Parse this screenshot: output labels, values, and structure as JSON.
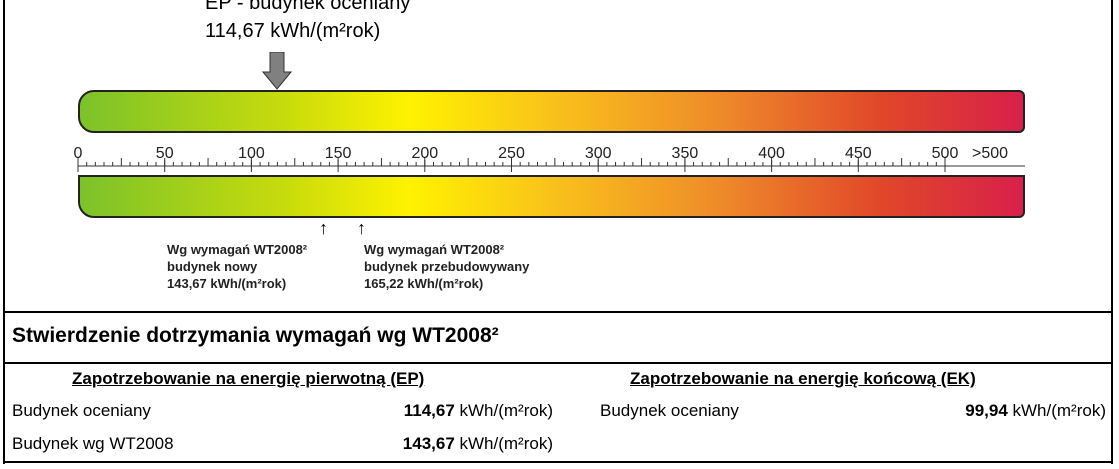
{
  "header": {
    "title": "EP - budynek oceniany",
    "value": "114,67 kWh/(m²rok)"
  },
  "scale": {
    "ticks": [
      0,
      50,
      100,
      150,
      200,
      250,
      300,
      350,
      400,
      450,
      500,
      ">500"
    ]
  },
  "markers": [
    [
      "Wg wymagań WT2008²",
      "budynek nowy",
      "143,67 kWh/(m²rok)"
    ],
    [
      "Wg wymagań WT2008²",
      "budynek przebudowywany",
      "165,22 kWh/(m²rok)"
    ]
  ],
  "section": {
    "title": "Stwierdzenie dotrzymania wymagań wg WT2008²",
    "ep": {
      "heading": "Zapotrzebowanie na energię pierwotną (EP)",
      "rows": [
        {
          "label": "Budynek oceniany",
          "value": "114,67",
          "unit": "kWh/(m²rok)"
        },
        {
          "label": "Budynek wg WT2008",
          "value": "143,67",
          "unit": "kWh/(m²rok)"
        }
      ]
    },
    "ek": {
      "heading": "Zapotrzebowanie na energię końcową (EK)",
      "rows": [
        {
          "label": "Budynek oceniany",
          "value": "99,94",
          "unit": "kWh/(m²rok)"
        }
      ]
    }
  }
}
